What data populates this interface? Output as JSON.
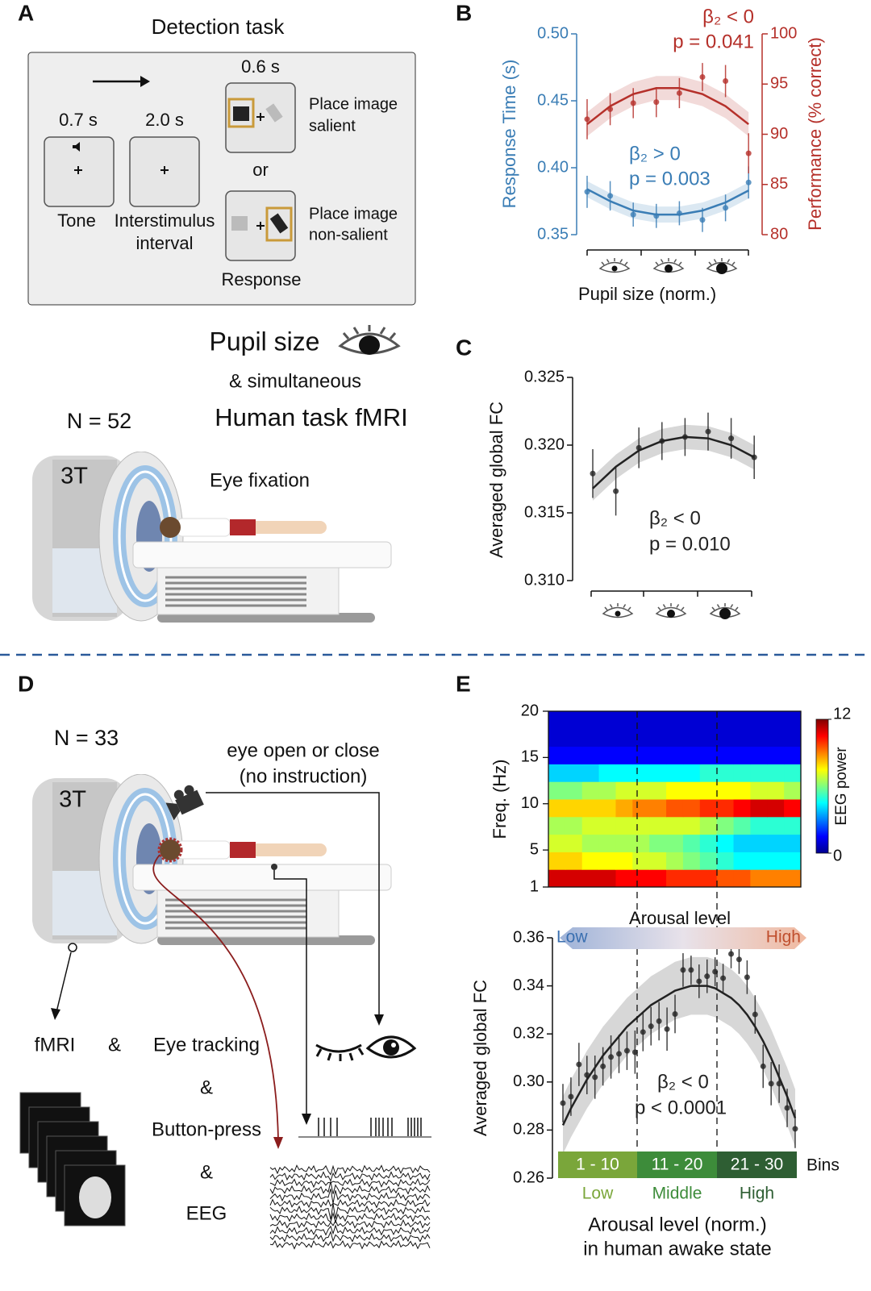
{
  "panel_labels": [
    "A",
    "B",
    "C",
    "D",
    "E"
  ],
  "panel_a": {
    "title": "Detection task",
    "tone_time": "0.7 s",
    "isi_time": "2.0 s",
    "stim_time": "0.6 s",
    "tone": "Tone",
    "isi": [
      "Interstimulus",
      "interval"
    ],
    "salient": [
      "Place image",
      "salient"
    ],
    "or": "or",
    "non_salient": [
      "Place image",
      "non-salient"
    ],
    "response": "Response",
    "pupil": "Pupil size",
    "simultaneous": "& simultaneous",
    "fmri": "Human task fMRI",
    "n": "N = 52",
    "tesla": "3T",
    "fixation": "Eye fixation"
  },
  "panel_d": {
    "n": "N = 33",
    "tesla": "3T",
    "camera": [
      "eye open or close",
      "(no instruction)"
    ],
    "fmri": "fMRI",
    "amp": "&",
    "eye_tracking": "Eye tracking",
    "button": "Button-press",
    "eeg": "EEG"
  },
  "chart_data": [
    {
      "type": "line",
      "ylabel": "Response Time (s)",
      "y2label": "Performance (% correct)",
      "xlabel": "Pupil size (norm.)",
      "ylim": [
        0.35,
        0.5
      ],
      "yticks": [
        0.35,
        {
          "value": 0.4,
          "label": "0.40"
        },
        0.45,
        {
          "value": 0.5,
          "label": "0.50"
        }
      ],
      "y2lim": [
        80,
        100
      ],
      "y2ticks": [
        80,
        85,
        90,
        95,
        100
      ],
      "series": [
        {
          "color": "#3a7db5",
          "values": [
            0.382,
            0.379,
            0.365,
            0.364,
            0.366,
            0.361,
            0.37,
            0.389
          ],
          "errors": [
            0.012,
            0.011,
            0.009,
            0.009,
            0.009,
            0.009,
            0.01,
            0.012
          ],
          "fit": [
            0.384,
            0.375,
            0.368,
            0.365,
            0.365,
            0.368,
            0.374,
            0.383
          ],
          "fit_band": 0.006
        },
        {
          "color": "#b5302a",
          "axis": "y2",
          "values": [
            91.5,
            92.5,
            93.1,
            93.2,
            94.1,
            95.7,
            95.3,
            88.1
          ],
          "errors": [
            2.0,
            1.6,
            1.5,
            1.5,
            1.5,
            1.4,
            1.6,
            2.0
          ],
          "fit": [
            91.0,
            92.8,
            94.0,
            94.6,
            94.6,
            94.0,
            92.8,
            91.0
          ],
          "fit_band": 1.2
        }
      ],
      "annotations": [
        "β₂ < 0",
        "p = 0.041",
        "β₂ > 0",
        "p = 0.003"
      ]
    },
    {
      "type": "line",
      "ylabel": "Averaged global FC",
      "ylim": [
        0.31,
        0.325
      ],
      "yticks": [
        {
          "value": 0.31,
          "label": "0.310"
        },
        0.315,
        {
          "value": 0.32,
          "label": "0.320"
        },
        0.325
      ],
      "series": [
        {
          "color": "#222222",
          "values": [
            0.3179,
            0.3166,
            0.3198,
            0.3203,
            0.3206,
            0.321,
            0.3205,
            0.3191
          ],
          "errors": [
            0.0018,
            0.0018,
            0.0015,
            0.0014,
            0.0014,
            0.0014,
            0.0015,
            0.0016
          ],
          "fit": [
            0.3168,
            0.3184,
            0.3196,
            0.3203,
            0.3206,
            0.3205,
            0.32,
            0.3191
          ],
          "fit_band": 0.0009
        }
      ],
      "annotations": [
        "β₂ < 0",
        "p = 0.010"
      ]
    },
    {
      "type": "heatmap",
      "ylabel": "Freq. (Hz)",
      "colorbar_label": "EEG power",
      "ylim": [
        1,
        20
      ],
      "yticks": [
        1,
        5,
        10,
        15,
        20
      ],
      "zlim": [
        0,
        12
      ],
      "zticks": [
        0,
        12
      ],
      "z": [
        [
          11,
          11,
          11,
          11,
          10.5,
          10.5,
          10.5,
          10,
          10,
          10,
          9.5,
          9.5,
          9,
          9,
          9
        ],
        [
          8,
          8,
          7.5,
          7.5,
          7.5,
          7,
          7,
          6.5,
          6,
          5.5,
          5,
          4.5,
          4.5,
          4.5,
          4.5
        ],
        [
          7,
          7,
          6.5,
          6.5,
          6.5,
          6.5,
          6,
          6,
          5.5,
          5,
          4.5,
          4,
          4,
          4,
          4
        ],
        [
          6.5,
          6.5,
          7,
          7,
          7,
          7,
          7,
          7,
          7,
          6.5,
          6,
          5.5,
          5,
          5,
          5
        ],
        [
          8,
          8,
          8,
          8,
          8.5,
          9,
          9,
          9.5,
          9.5,
          10,
          10,
          10.5,
          11,
          11,
          10.5
        ],
        [
          6,
          6,
          6.5,
          6.5,
          7,
          7,
          7,
          7.5,
          7.5,
          7.5,
          7.5,
          7.5,
          7,
          7,
          6.5
        ],
        [
          4,
          4,
          4,
          4.5,
          4.5,
          4.5,
          4.5,
          4.5,
          4.5,
          5,
          5,
          5,
          5,
          5,
          5
        ],
        [
          1.5,
          1.5,
          1.5,
          1.5,
          1.5,
          1.5,
          1.5,
          1.5,
          1.5,
          1.5,
          1.5,
          1.5,
          1.5,
          1.5,
          1.5
        ],
        [
          1,
          1,
          1,
          1,
          1,
          1,
          1,
          1,
          1,
          1,
          1,
          1,
          1,
          1,
          1
        ],
        [
          1,
          1,
          1,
          1,
          1,
          1,
          1,
          1,
          1,
          1,
          1,
          1,
          1,
          1,
          1
        ]
      ]
    },
    {
      "type": "line",
      "ylabel": "Averaged global FC",
      "xlabel": [
        "Arousal level (norm.)",
        "in human awake state"
      ],
      "ylim": [
        0.26,
        0.36
      ],
      "yticks": [
        0.26,
        0.28,
        {
          "value": 0.3,
          "label": "0.30"
        },
        0.32,
        0.34,
        0.36
      ],
      "series": [
        {
          "color": "#222222",
          "values": [
            0.2912,
            0.2939,
            0.3073,
            0.3029,
            0.302,
            0.3065,
            0.3104,
            0.3117,
            0.313,
            0.3124,
            0.3208,
            0.3232,
            0.3253,
            0.322,
            0.3283,
            0.3466,
            0.3466,
            0.3419,
            0.344,
            0.3459,
            0.3432,
            0.3533,
            0.351,
            0.3436,
            0.3281,
            0.3065,
            0.2993,
            0.2993,
            0.2892,
            0.2805
          ],
          "errors": [
            0.008,
            0.008,
            0.009,
            0.008,
            0.009,
            0.008,
            0.009,
            0.008,
            0.008,
            0.009,
            0.008,
            0.008,
            0.008,
            0.009,
            0.008,
            0.007,
            0.006,
            0.007,
            0.007,
            0.006,
            0.006,
            0.006,
            0.006,
            0.007,
            0.008,
            0.009,
            0.009,
            0.008,
            0.008,
            0.008
          ],
          "fit": [
            0.282,
            0.289,
            0.295,
            0.301,
            0.306,
            0.311,
            0.315,
            0.319,
            0.323,
            0.326,
            0.329,
            0.332,
            0.334,
            0.336,
            0.338,
            0.339,
            0.34,
            0.34,
            0.34,
            0.339,
            0.337,
            0.335,
            0.332,
            0.328,
            0.323,
            0.317,
            0.31,
            0.302,
            0.294,
            0.285
          ],
          "fit_band": 0.012
        }
      ],
      "annotations": [
        "β₂ < 0",
        "p < 0.0001"
      ],
      "arousal_label": "Arousal level",
      "arousal_ends": [
        "Low",
        "High"
      ],
      "bin_groups": [
        "1 - 10",
        "11 - 20",
        "21 - 30"
      ],
      "bin_groups_label": "Bins",
      "bin_levels": [
        "Low",
        "Middle",
        "High"
      ]
    }
  ]
}
